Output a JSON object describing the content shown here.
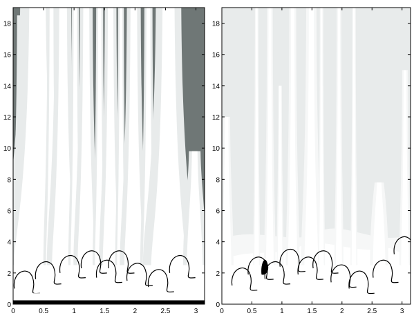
{
  "chart_data": [
    {
      "type": "heatmap",
      "panel": "left",
      "xlim": [
        0,
        3.14159
      ],
      "ylim": [
        0,
        19
      ],
      "xticks": [
        0,
        0.5,
        1,
        1.5,
        2,
        2.5,
        3
      ],
      "xtick_labels": [
        "0",
        "0.5",
        "1",
        "1.5",
        "2",
        "2.5",
        "3"
      ],
      "yticks": [
        0,
        2,
        4,
        6,
        8,
        10,
        12,
        14,
        16,
        18
      ],
      "ytick_labels": [
        "0",
        "2",
        "4",
        "6",
        "8",
        "10",
        "12",
        "14",
        "16",
        "18"
      ],
      "colors": {
        "background": "#6f7776",
        "light": "#e8ebeb",
        "white": "#ffffff",
        "dark": "#000000"
      },
      "plumes": [
        {
          "x": 0.16,
          "width": 0.1,
          "top": 18.5
        },
        {
          "x": 0.4,
          "width": 0.3,
          "top": 19.0
        },
        {
          "x": 0.63,
          "width": 0.07,
          "top": 19.0
        },
        {
          "x": 0.82,
          "width": 0.14,
          "top": 19.0
        },
        {
          "x": 1.02,
          "width": 0.06,
          "top": 19.0
        },
        {
          "x": 1.2,
          "width": 0.11,
          "top": 19.0
        },
        {
          "x": 1.42,
          "width": 0.06,
          "top": 19.0
        },
        {
          "x": 1.6,
          "width": 0.1,
          "top": 19.0
        },
        {
          "x": 1.77,
          "width": 0.05,
          "top": 19.0
        },
        {
          "x": 1.98,
          "width": 0.12,
          "top": 19.0
        },
        {
          "x": 2.22,
          "width": 0.07,
          "top": 19.0
        },
        {
          "x": 2.55,
          "width": 0.22,
          "top": 19.0
        },
        {
          "x": 2.98,
          "width": 0.1,
          "top": 9.8
        }
      ]
    },
    {
      "type": "heatmap",
      "panel": "right",
      "xlim": [
        0,
        3.14159
      ],
      "ylim": [
        0,
        19
      ],
      "xticks": [
        0,
        0.5,
        1,
        1.5,
        2,
        2.5,
        3
      ],
      "xtick_labels": [
        "0",
        "0.5",
        "1",
        "1.5",
        "2",
        "2.5",
        "3"
      ],
      "yticks": [
        0,
        2,
        4,
        6,
        8,
        10,
        12,
        14,
        16,
        18
      ],
      "ytick_labels": [
        "0",
        "2",
        "4",
        "6",
        "8",
        "10",
        "12",
        "14",
        "16",
        "18"
      ],
      "colors": {
        "background": "#e8ebeb",
        "light": "#f6f7f7",
        "white": "#ffffff",
        "dark": "#000000"
      },
      "plumes": [
        {
          "x": 0.08,
          "width": 0.06,
          "top": 12.0
        },
        {
          "x": 0.58,
          "width": 0.03,
          "top": 19.0
        },
        {
          "x": 0.8,
          "width": 0.05,
          "top": 19.0
        },
        {
          "x": 0.97,
          "width": 0.03,
          "top": 14.0
        },
        {
          "x": 1.18,
          "width": 0.06,
          "top": 19.0
        },
        {
          "x": 1.49,
          "width": 0.09,
          "top": 19.0
        },
        {
          "x": 1.66,
          "width": 0.03,
          "top": 19.0
        },
        {
          "x": 1.95,
          "width": 0.04,
          "top": 19.0
        },
        {
          "x": 2.2,
          "width": 0.03,
          "top": 19.0
        },
        {
          "x": 2.62,
          "width": 0.08,
          "top": 7.8
        },
        {
          "x": 3.05,
          "width": 0.05,
          "top": 15.0
        }
      ]
    }
  ]
}
